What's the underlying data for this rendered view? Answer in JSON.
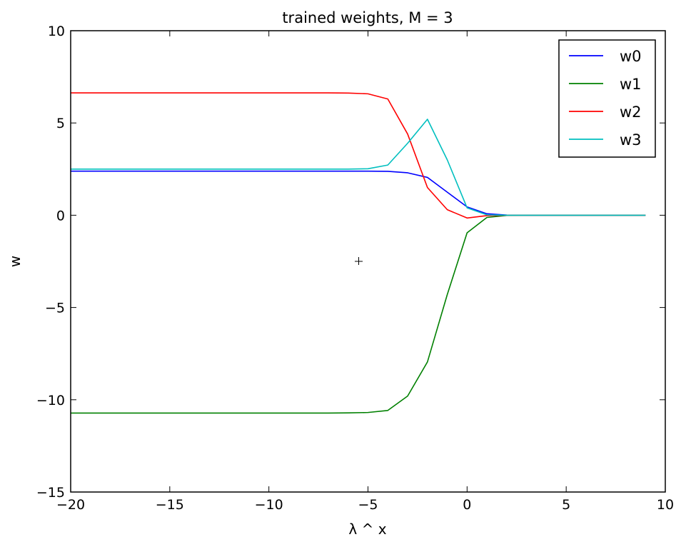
{
  "chart_data": {
    "type": "line",
    "title": "trained weights, M = 3",
    "xlabel": "λ ^ x",
    "ylabel": "w",
    "xlim": [
      -20,
      10
    ],
    "ylim": [
      -15,
      10
    ],
    "xticks": [
      -20,
      -15,
      -10,
      -5,
      0,
      5,
      10
    ],
    "yticks": [
      -15,
      -10,
      -5,
      0,
      5,
      10
    ],
    "xtick_labels": [
      "−20",
      "−15",
      "−10",
      "−5",
      "0",
      "5",
      "10"
    ],
    "ytick_labels": [
      "−15",
      "−10",
      "−5",
      "0",
      "5",
      "10"
    ],
    "grid": false,
    "legend_position": "top-right",
    "x": [
      -20,
      -19,
      -18,
      -17,
      -16,
      -15,
      -14,
      -13,
      -12,
      -11,
      -10,
      -9,
      -8,
      -7,
      -6,
      -5,
      -4,
      -3,
      -2,
      -1,
      0,
      1,
      2,
      3,
      4,
      5,
      6,
      7,
      8,
      9
    ],
    "series": [
      {
        "name": "w0",
        "color": "#0000ff",
        "values": [
          2.39,
          2.39,
          2.39,
          2.39,
          2.39,
          2.39,
          2.39,
          2.39,
          2.39,
          2.39,
          2.39,
          2.39,
          2.39,
          2.39,
          2.39,
          2.39,
          2.38,
          2.3,
          2.05,
          1.25,
          0.45,
          0.08,
          0.01,
          0,
          0,
          0,
          0,
          0,
          0,
          0
        ]
      },
      {
        "name": "w1",
        "color": "#008000",
        "values": [
          -10.72,
          -10.72,
          -10.72,
          -10.72,
          -10.72,
          -10.72,
          -10.72,
          -10.72,
          -10.72,
          -10.72,
          -10.72,
          -10.72,
          -10.72,
          -10.72,
          -10.71,
          -10.69,
          -10.58,
          -9.8,
          -7.95,
          -4.3,
          -0.95,
          -0.12,
          -0.01,
          0,
          0,
          0,
          0,
          0,
          0,
          0
        ]
      },
      {
        "name": "w2",
        "color": "#ff0000",
        "values": [
          6.63,
          6.63,
          6.63,
          6.63,
          6.63,
          6.63,
          6.63,
          6.63,
          6.63,
          6.63,
          6.63,
          6.63,
          6.63,
          6.63,
          6.62,
          6.58,
          6.3,
          4.4,
          1.5,
          0.3,
          -0.15,
          -0.02,
          0,
          0,
          0,
          0,
          0,
          0,
          0,
          0
        ]
      },
      {
        "name": "w3",
        "color": "#00bfbf",
        "values": [
          2.5,
          2.5,
          2.5,
          2.5,
          2.5,
          2.5,
          2.5,
          2.5,
          2.5,
          2.5,
          2.5,
          2.5,
          2.5,
          2.5,
          2.5,
          2.52,
          2.72,
          3.9,
          5.2,
          3.0,
          0.4,
          0.02,
          0,
          0,
          0,
          0,
          0,
          0,
          0,
          0
        ]
      }
    ]
  }
}
